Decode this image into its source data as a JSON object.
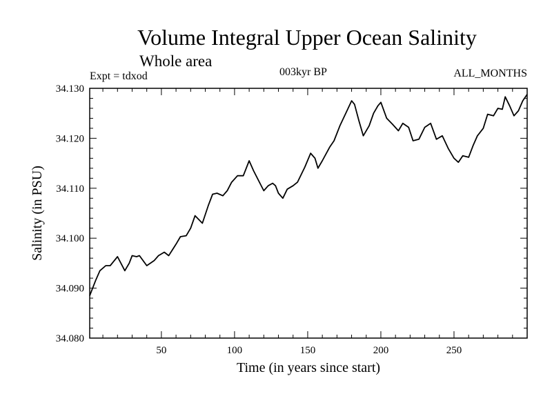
{
  "header": {
    "title": "Volume Integral Upper Ocean Salinity",
    "subtitle": "Whole area",
    "expt": "Expt = tdxod",
    "period": "003kyr BP",
    "months": "ALL_MONTHS"
  },
  "chart_data": {
    "type": "line",
    "title": "Volume Integral Upper Ocean Salinity",
    "subtitle": "Whole area",
    "xlabel": "Time (in years since start)",
    "ylabel": "Salinity (in PSU)",
    "xlim": [
      1,
      300
    ],
    "ylim": [
      34.08,
      34.13
    ],
    "x_ticks": [
      50,
      100,
      150,
      200,
      250
    ],
    "y_ticks": [
      "34.080",
      "34.090",
      "34.100",
      "34.110",
      "34.120",
      "34.130"
    ],
    "grid": false,
    "series": [
      {
        "color": "#000000",
        "x": [
          1,
          5,
          8,
          12,
          15,
          20,
          25,
          28,
          30,
          33,
          35,
          40,
          45,
          48,
          52,
          55,
          60,
          63,
          67,
          70,
          73,
          78,
          82,
          85,
          88,
          92,
          95,
          98,
          102,
          106,
          110,
          113,
          117,
          120,
          123,
          126,
          128,
          130,
          133,
          136,
          140,
          143,
          148,
          152,
          155,
          157,
          160,
          165,
          168,
          172,
          176,
          180,
          182,
          185,
          188,
          192,
          195,
          198,
          200,
          204,
          208,
          212,
          215,
          219,
          222,
          226,
          230,
          234,
          238,
          242,
          246,
          250,
          253,
          256,
          260,
          263,
          266,
          270,
          273,
          277,
          280,
          283,
          285,
          288,
          291,
          294,
          297,
          300
        ],
        "y": [
          34.0885,
          34.0915,
          34.0935,
          34.0945,
          34.0945,
          34.0963,
          34.0935,
          34.095,
          34.0965,
          34.0963,
          34.0965,
          34.0945,
          34.0955,
          34.0965,
          34.0972,
          34.0965,
          34.0988,
          34.1003,
          34.1005,
          34.102,
          34.1045,
          34.103,
          34.1065,
          34.1088,
          34.109,
          34.1085,
          34.1095,
          34.1112,
          34.1125,
          34.1125,
          34.1155,
          34.1135,
          34.1112,
          34.1095,
          34.1105,
          34.111,
          34.1105,
          34.109,
          34.108,
          34.1098,
          34.1105,
          34.1112,
          34.1142,
          34.117,
          34.116,
          34.114,
          34.1155,
          34.1182,
          34.1195,
          34.1225,
          34.125,
          34.1275,
          34.1268,
          34.1235,
          34.1205,
          34.1225,
          34.125,
          34.1265,
          34.1272,
          34.124,
          34.1228,
          34.1215,
          34.123,
          34.1222,
          34.1195,
          34.1198,
          34.1222,
          34.123,
          34.1198,
          34.1205,
          34.118,
          34.116,
          34.1152,
          34.1165,
          34.1162,
          34.1185,
          34.1205,
          34.122,
          34.1248,
          34.1245,
          34.126,
          34.1258,
          34.1283,
          34.1265,
          34.1245,
          34.1255,
          34.1275,
          34.1288
        ]
      }
    ]
  }
}
